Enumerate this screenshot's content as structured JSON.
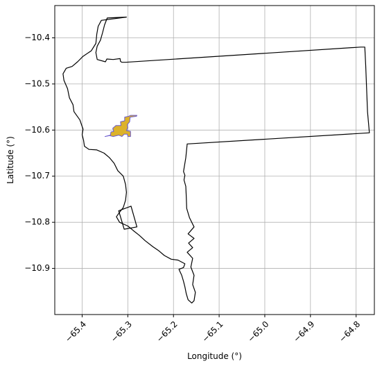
{
  "chart_data": {
    "type": "map",
    "title": "",
    "xlabel": "Longitude (°)",
    "ylabel": "Latitude (°)",
    "xlim": [
      -65.46,
      -64.76
    ],
    "ylim": [
      -11.0,
      -10.33
    ],
    "x_ticks": [
      -65.4,
      -65.3,
      -65.2,
      -65.1,
      -65.0,
      -64.9,
      -64.8
    ],
    "x_tick_labels": [
      "−65.4",
      "−65.3",
      "−65.2",
      "−65.1",
      "−65.0",
      "−64.9",
      "−64.8"
    ],
    "y_ticks": [
      -10.4,
      -10.5,
      -10.6,
      -10.7,
      -10.8,
      -10.9
    ],
    "y_tick_labels": [
      "−10.4",
      "−10.5",
      "−10.6",
      "−10.7",
      "−10.8",
      "−10.9"
    ],
    "grid": true,
    "colors": {
      "boundary": "#000000",
      "settlement_fill": "#dcb22a",
      "settlement_edge": "#6a5acd",
      "grid": "#b0b0b0"
    },
    "boundary": [
      [
        -65.303,
        -10.355
      ],
      [
        -65.345,
        -10.357
      ],
      [
        -65.351,
        -10.372
      ],
      [
        -65.355,
        -10.388
      ],
      [
        -65.36,
        -10.405
      ],
      [
        -65.367,
        -10.418
      ],
      [
        -65.37,
        -10.432
      ],
      [
        -65.367,
        -10.447
      ],
      [
        -65.349,
        -10.452
      ],
      [
        -65.346,
        -10.446
      ],
      [
        -65.332,
        -10.447
      ],
      [
        -65.317,
        -10.445
      ],
      [
        -65.316,
        -10.451
      ],
      [
        -65.313,
        -10.453
      ],
      [
        -65.305,
        -10.453
      ],
      [
        -64.79,
        -10.42
      ],
      [
        -64.781,
        -10.42
      ],
      [
        -64.779,
        -10.46
      ],
      [
        -64.775,
        -10.56
      ],
      [
        -64.771,
        -10.606
      ],
      [
        -65.17,
        -10.63
      ],
      [
        -65.173,
        -10.66
      ],
      [
        -65.178,
        -10.69
      ],
      [
        -65.175,
        -10.698
      ],
      [
        -65.177,
        -10.708
      ],
      [
        -65.173,
        -10.722
      ],
      [
        -65.172,
        -10.745
      ],
      [
        -65.171,
        -10.77
      ],
      [
        -65.165,
        -10.79
      ],
      [
        -65.155,
        -10.81
      ],
      [
        -65.168,
        -10.825
      ],
      [
        -65.155,
        -10.835
      ],
      [
        -65.167,
        -10.845
      ],
      [
        -65.158,
        -10.855
      ],
      [
        -65.17,
        -10.865
      ],
      [
        -65.158,
        -10.878
      ],
      [
        -65.162,
        -10.897
      ],
      [
        -65.155,
        -10.915
      ],
      [
        -65.158,
        -10.935
      ],
      [
        -65.152,
        -10.952
      ],
      [
        -65.155,
        -10.97
      ],
      [
        -65.16,
        -10.975
      ],
      [
        -65.168,
        -10.968
      ],
      [
        -65.172,
        -10.955
      ],
      [
        -65.175,
        -10.94
      ],
      [
        -65.178,
        -10.928
      ],
      [
        -65.182,
        -10.915
      ],
      [
        -65.188,
        -10.902
      ],
      [
        -65.178,
        -10.898
      ],
      [
        -65.175,
        -10.89
      ],
      [
        -65.19,
        -10.882
      ],
      [
        -65.205,
        -10.88
      ],
      [
        -65.22,
        -10.872
      ],
      [
        -65.232,
        -10.862
      ],
      [
        -65.245,
        -10.853
      ],
      [
        -65.262,
        -10.84
      ],
      [
        -65.275,
        -10.828
      ],
      [
        -65.288,
        -10.818
      ],
      [
        -65.3,
        -10.808
      ],
      [
        -65.318,
        -10.8
      ],
      [
        -65.325,
        -10.788
      ],
      [
        -65.318,
        -10.778
      ],
      [
        -65.31,
        -10.768
      ],
      [
        -65.305,
        -10.752
      ],
      [
        -65.303,
        -10.735
      ],
      [
        -65.305,
        -10.718
      ],
      [
        -65.31,
        -10.7
      ],
      [
        -65.322,
        -10.688
      ],
      [
        -65.33,
        -10.672
      ],
      [
        -65.34,
        -10.66
      ],
      [
        -65.352,
        -10.65
      ],
      [
        -65.368,
        -10.643
      ],
      [
        -65.385,
        -10.642
      ],
      [
        -65.395,
        -10.635
      ],
      [
        -65.397,
        -10.622
      ],
      [
        -65.4,
        -10.61
      ],
      [
        -65.398,
        -10.598
      ],
      [
        -65.405,
        -10.578
      ],
      [
        -65.418,
        -10.56
      ],
      [
        -65.42,
        -10.545
      ],
      [
        -65.428,
        -10.53
      ],
      [
        -65.432,
        -10.51
      ],
      [
        -65.44,
        -10.492
      ],
      [
        -65.442,
        -10.478
      ],
      [
        -65.435,
        -10.466
      ],
      [
        -65.422,
        -10.462
      ],
      [
        -65.41,
        -10.452
      ],
      [
        -65.398,
        -10.44
      ],
      [
        -65.38,
        -10.428
      ],
      [
        -65.37,
        -10.412
      ],
      [
        -65.368,
        -10.392
      ],
      [
        -65.365,
        -10.375
      ],
      [
        -65.358,
        -10.362
      ],
      [
        -65.303,
        -10.355
      ]
    ],
    "inner_polygon": [
      [
        -65.32,
        -10.775
      ],
      [
        -65.293,
        -10.765
      ],
      [
        -65.28,
        -10.81
      ],
      [
        -65.308,
        -10.815
      ],
      [
        -65.32,
        -10.775
      ]
    ],
    "settlement": [
      [
        -65.35,
        -10.614
      ],
      [
        -65.338,
        -10.611
      ],
      [
        -65.337,
        -10.604
      ],
      [
        -65.331,
        -10.603
      ],
      [
        -65.333,
        -10.596
      ],
      [
        -65.326,
        -10.59
      ],
      [
        -65.315,
        -10.59
      ],
      [
        -65.316,
        -10.582
      ],
      [
        -65.307,
        -10.58
      ],
      [
        -65.307,
        -10.572
      ],
      [
        -65.298,
        -10.57
      ],
      [
        -65.294,
        -10.568
      ],
      [
        -65.28,
        -10.568
      ],
      [
        -65.281,
        -10.57
      ],
      [
        -65.295,
        -10.572
      ],
      [
        -65.296,
        -10.582
      ],
      [
        -65.301,
        -10.588
      ],
      [
        -65.3,
        -10.595
      ],
      [
        -65.303,
        -10.601
      ],
      [
        -65.294,
        -10.603
      ],
      [
        -65.294,
        -10.614
      ],
      [
        -65.3,
        -10.614
      ],
      [
        -65.301,
        -10.609
      ],
      [
        -65.308,
        -10.609
      ],
      [
        -65.313,
        -10.614
      ],
      [
        -65.32,
        -10.611
      ],
      [
        -65.332,
        -10.614
      ],
      [
        -65.34,
        -10.612
      ],
      [
        -65.35,
        -10.614
      ]
    ]
  }
}
